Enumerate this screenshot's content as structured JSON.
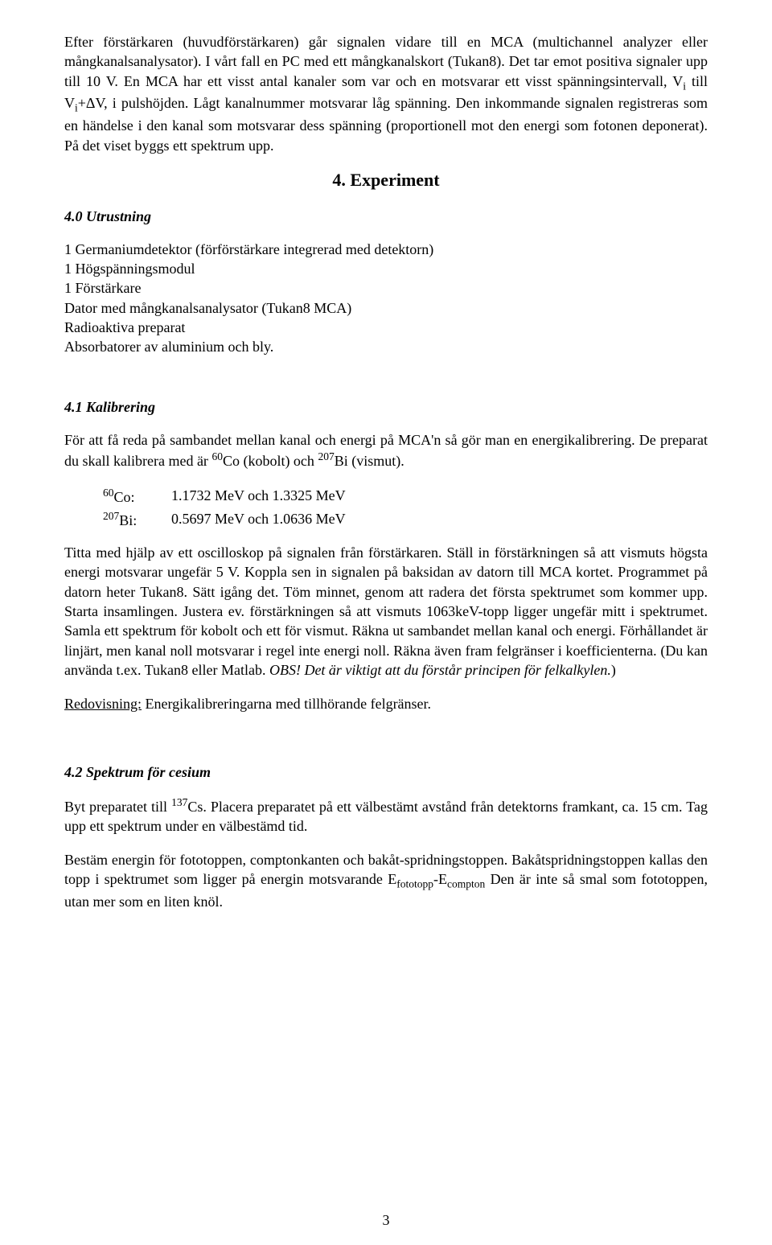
{
  "para1_html": "Efter förstärkaren (huvudförstärkaren) går signalen vidare till en MCA (multichannel analyzer eller mångkanalsanalysator). I vårt fall en PC med ett mångkanalskort (Tukan8). Det tar emot positiva signaler upp till 10 V. En MCA har ett visst antal kanaler som var och en motsvarar ett visst spänningsintervall, V<sub>i</sub> till V<sub>i</sub>+ΔV, i pulshöjden. Lågt kanalnummer motsvarar låg spänning. Den inkommande signalen registreras som en händelse i den kanal som motsvarar dess spänning (proportionell mot den energi som fotonen deponerat). På det viset byggs ett spektrum upp.",
  "h_experiment": "4. Experiment",
  "sh_utrustning": "4.0 Utrustning",
  "equipment": [
    "1 Germaniumdetektor (förförstärkare integrerad med detektorn)",
    "1 Högspänningsmodul",
    "1 Förstärkare",
    "Dator med mångkanalsanalysator (Tukan8 MCA)",
    "Radioaktiva preparat",
    "Absorbatorer av aluminium och bly."
  ],
  "sh_kalibrering": "4.1 Kalibrering",
  "kalib_intro_html": "För att få reda på sambandet mellan kanal och energi på MCA'n så gör man en energikalibrering. De preparat du skall kalibrera med är <sup>60</sup>Co (kobolt) och <sup>207</sup>Bi (vismut).",
  "co_label_html": "<sup>60</sup>Co:",
  "co_values": "1.1732 MeV och 1.3325 MeV",
  "bi_label_html": "<sup>207</sup>Bi:",
  "bi_values": "0.5697 MeV och 1.0636 MeV",
  "kalib_body_html": "Titta med hjälp av ett oscilloskop på signalen från förstärkaren. Ställ in förstärkningen så att vismuts högsta energi motsvarar ungefär 5 V. Koppla sen in signalen på baksidan av datorn till MCA kortet. Programmet på datorn heter Tukan8. Sätt igång det. Töm minnet, genom att radera det första spektrumet som kommer upp. Starta insamlingen. Justera ev. förstärkningen så att vismuts 1063keV-topp ligger ungefär mitt i spektrumet. Samla ett spektrum för kobolt och ett för vismut. Räkna ut sambandet mellan kanal och energi. Förhållandet är linjärt, men kanal noll motsvarar i regel inte energi noll. Räkna även fram felgränser i koefficienterna. (Du kan använda t.ex. Tukan8 eller Matlab. <span class=\"italic\">OBS! Det är viktigt att du förstår principen för felkalkylen.</span>)",
  "redov_label": "Redovisning:",
  "redov_text": " Energikalibreringarna med tillhörande felgränser.",
  "sh_cesium": "4.2 Spektrum för cesium",
  "cesium_p1_html": "Byt preparatet till <sup>137</sup>Cs. Placera preparatet på ett välbestämt avstånd från detektorns framkant, ca. 15 cm. Tag upp ett spektrum under en välbestämd tid.",
  "cesium_p2_html": "Bestäm energin för fototoppen, comptonkanten och bakåt-spridningstoppen. Bakåtspridningstoppen kallas den topp i spektrumet som ligger på energin motsvarande E<sub>fototopp</sub>-E<sub>compton</sub>  Den är inte så smal som fototoppen, utan mer som en liten knöl.",
  "page_number": "3"
}
